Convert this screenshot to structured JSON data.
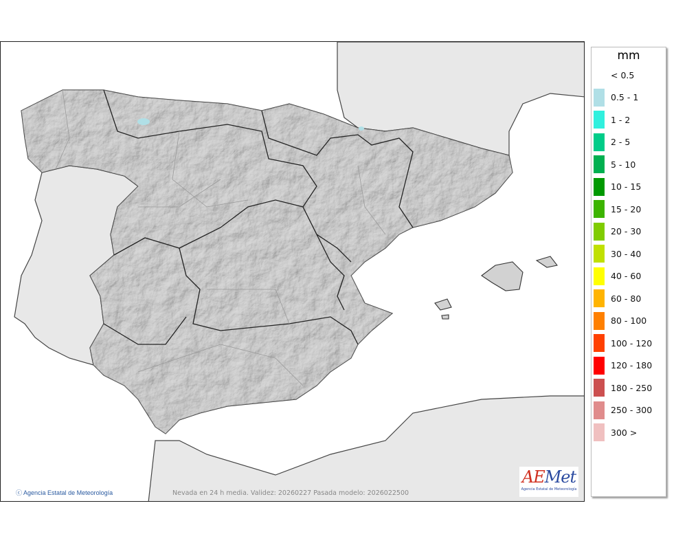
{
  "map": {
    "caption": "Nevada en 24 h media. Validez: 20260227 Pasada modelo: 2026022500",
    "credit": "Agencia Estatal de Meteorología",
    "credit_icon": "copyright-icon",
    "logo": {
      "word_a": "AE",
      "word_b": "Met",
      "subtitle": "Agencia Estatal de Meteorología"
    },
    "colors": {
      "land_spain": "#d2d2d2",
      "land_other": "#e8e8e8",
      "sea": "#ffffff",
      "border": "#333333"
    }
  },
  "legend": {
    "title": "mm",
    "items": [
      {
        "label": "< 0.5",
        "color": null
      },
      {
        "label": "0.5 - 1",
        "color": "#b0dfe6"
      },
      {
        "label": "1 - 2",
        "color": "#30f0de"
      },
      {
        "label": "2 - 5",
        "color": "#00cc88"
      },
      {
        "label": "5 - 10",
        "color": "#00b050"
      },
      {
        "label": "10 - 15",
        "color": "#009900"
      },
      {
        "label": "15 - 20",
        "color": "#3cb400"
      },
      {
        "label": "20 - 30",
        "color": "#80cc00"
      },
      {
        "label": "30 - 40",
        "color": "#c0e000"
      },
      {
        "label": "40 - 60",
        "color": "#ffff00"
      },
      {
        "label": "60 - 80",
        "color": "#ffb400"
      },
      {
        "label": "80 - 100",
        "color": "#ff8000"
      },
      {
        "label": "100 - 120",
        "color": "#ff4000"
      },
      {
        "label": "120 - 180",
        "color": "#ff0000"
      },
      {
        "label": "180 - 250",
        "color": "#cc5050"
      },
      {
        "label": "250 - 300",
        "color": "#e08c8c"
      },
      {
        "label": "300 >",
        "color": "#f0c0c0"
      }
    ]
  }
}
